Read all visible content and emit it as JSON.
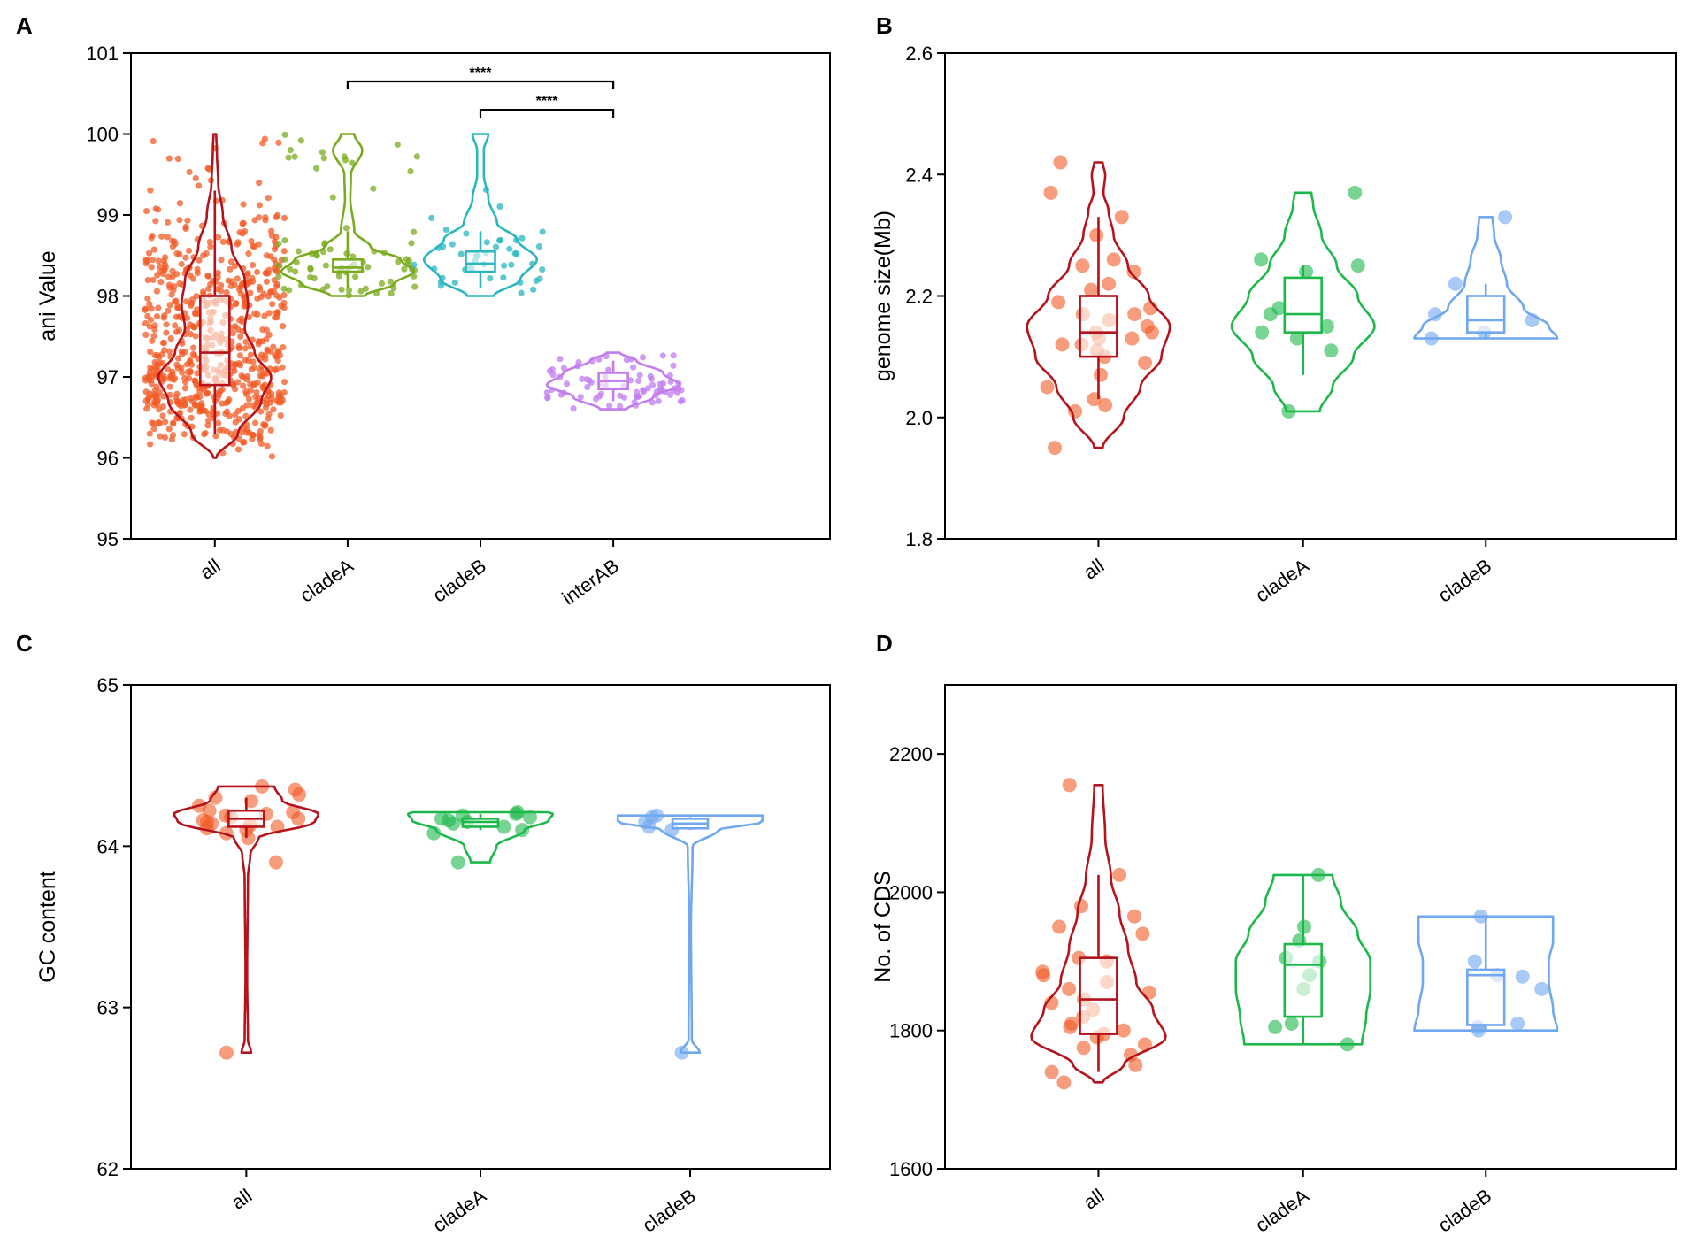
{
  "chart_data": [
    {
      "panel": "A",
      "type": "violin",
      "ylabel": "ani Value",
      "xlabel": "",
      "ylim": [
        95,
        101
      ],
      "yticks": [
        95,
        96,
        97,
        98,
        99,
        100,
        101
      ],
      "categories": [
        "all",
        "cladeA",
        "cladeB",
        "interAB"
      ],
      "colors": [
        "#f15a24",
        "#7aab1e",
        "#2ab7c0",
        "#c27cf0"
      ],
      "line_colors": [
        "#b5121b",
        "#7aab1e",
        "#2ab7c0",
        "#c27cf0"
      ],
      "points_per_group": [
        700,
        80,
        45,
        80
      ],
      "groups": [
        {
          "name": "all",
          "min": 96.0,
          "q1": 96.9,
          "median": 97.3,
          "q3": 98.0,
          "max": 100.0,
          "whisker_low": 96.3,
          "whisker_high": 99.3,
          "density": [
            [
              96.0,
              0.02
            ],
            [
              96.3,
              0.35
            ],
            [
              96.7,
              0.7
            ],
            [
              97.0,
              0.85
            ],
            [
              97.3,
              0.6
            ],
            [
              97.6,
              0.45
            ],
            [
              97.9,
              0.5
            ],
            [
              98.2,
              0.45
            ],
            [
              98.6,
              0.25
            ],
            [
              99.0,
              0.12
            ],
            [
              99.4,
              0.05
            ],
            [
              99.8,
              0.03
            ],
            [
              100.0,
              0.02
            ]
          ]
        },
        {
          "name": "cladeA",
          "min": 98.0,
          "q1": 98.3,
          "median": 98.35,
          "q3": 98.45,
          "max": 100.0,
          "whisker_low": 98.1,
          "whisker_high": 98.8,
          "density": [
            [
              98.0,
              0.25
            ],
            [
              98.15,
              0.7
            ],
            [
              98.3,
              1.0
            ],
            [
              98.45,
              0.8
            ],
            [
              98.6,
              0.35
            ],
            [
              98.8,
              0.1
            ],
            [
              99.2,
              0.04
            ],
            [
              99.5,
              0.05
            ],
            [
              99.8,
              0.22
            ],
            [
              100.0,
              0.1
            ]
          ]
        },
        {
          "name": "cladeB",
          "min": 98.0,
          "q1": 98.3,
          "median": 98.4,
          "q3": 98.55,
          "max": 100.0,
          "whisker_low": 98.1,
          "whisker_high": 98.8,
          "density": [
            [
              98.0,
              0.2
            ],
            [
              98.2,
              0.6
            ],
            [
              98.45,
              0.85
            ],
            [
              98.7,
              0.55
            ],
            [
              98.9,
              0.25
            ],
            [
              99.2,
              0.12
            ],
            [
              99.5,
              0.05
            ],
            [
              99.8,
              0.05
            ],
            [
              100.0,
              0.12
            ]
          ]
        },
        {
          "name": "interAB",
          "min": 96.6,
          "q1": 96.85,
          "median": 96.95,
          "q3": 97.05,
          "max": 97.3,
          "whisker_low": 96.7,
          "whisker_high": 97.2,
          "density": [
            [
              96.6,
              0.2
            ],
            [
              96.75,
              0.6
            ],
            [
              96.9,
              1.0
            ],
            [
              97.05,
              0.75
            ],
            [
              97.2,
              0.35
            ],
            [
              97.3,
              0.1
            ]
          ]
        }
      ],
      "significance": [
        {
          "from": "cladeA",
          "to": "interAB",
          "y": 100.65,
          "label": "****"
        },
        {
          "from": "cladeB",
          "to": "interAB",
          "y": 100.3,
          "label": "****"
        }
      ]
    },
    {
      "panel": "B",
      "type": "violin",
      "ylabel": "genome size(Mb)",
      "xlabel": "",
      "ylim": [
        1.8,
        2.6
      ],
      "yticks": [
        1.8,
        2.0,
        2.2,
        2.4,
        2.6
      ],
      "categories": [
        "all",
        "cladeA",
        "cladeB"
      ],
      "colors": [
        "#f15a24",
        "#1db84a",
        "#6fa7f0"
      ],
      "line_colors": [
        "#b5121b",
        "#1db84a",
        "#6fa7f0"
      ],
      "groups": [
        {
          "name": "all",
          "min": 1.95,
          "q1": 2.1,
          "median": 2.14,
          "q3": 2.2,
          "max": 2.42,
          "whisker_low": 2.03,
          "whisker_high": 2.33,
          "points": [
            2.42,
            2.37,
            2.33,
            2.3,
            2.26,
            2.25,
            2.24,
            2.22,
            2.21,
            2.19,
            2.18,
            2.17,
            2.17,
            2.16,
            2.15,
            2.14,
            2.14,
            2.13,
            2.13,
            2.12,
            2.12,
            2.11,
            2.1,
            2.09,
            2.07,
            2.05,
            2.03,
            2.02,
            2.01,
            1.95
          ],
          "density": [
            [
              1.95,
              0.05
            ],
            [
              2.0,
              0.3
            ],
            [
              2.05,
              0.5
            ],
            [
              2.1,
              0.75
            ],
            [
              2.15,
              0.85
            ],
            [
              2.2,
              0.6
            ],
            [
              2.25,
              0.35
            ],
            [
              2.3,
              0.18
            ],
            [
              2.34,
              0.12
            ],
            [
              2.37,
              0.06
            ],
            [
              2.4,
              0.08
            ],
            [
              2.42,
              0.05
            ]
          ]
        },
        {
          "name": "cladeA",
          "min": 2.01,
          "q1": 2.14,
          "median": 2.17,
          "q3": 2.23,
          "max": 2.37,
          "whisker_low": 2.07,
          "whisker_high": 2.25,
          "points": [
            2.37,
            2.26,
            2.25,
            2.24,
            2.18,
            2.17,
            2.15,
            2.14,
            2.13,
            2.11,
            2.01
          ],
          "density": [
            [
              2.01,
              0.2
            ],
            [
              2.05,
              0.35
            ],
            [
              2.1,
              0.6
            ],
            [
              2.15,
              0.85
            ],
            [
              2.2,
              0.65
            ],
            [
              2.25,
              0.4
            ],
            [
              2.3,
              0.22
            ],
            [
              2.35,
              0.12
            ],
            [
              2.37,
              0.1
            ]
          ]
        },
        {
          "name": "cladeB",
          "min": 2.13,
          "q1": 2.14,
          "median": 2.16,
          "q3": 2.2,
          "max": 2.33,
          "whisker_low": 2.13,
          "whisker_high": 2.22,
          "points": [
            2.33,
            2.22,
            2.17,
            2.16,
            2.14,
            2.13
          ],
          "density": [
            [
              2.13,
              0.85
            ],
            [
              2.15,
              0.75
            ],
            [
              2.18,
              0.45
            ],
            [
              2.22,
              0.25
            ],
            [
              2.26,
              0.18
            ],
            [
              2.3,
              0.1
            ],
            [
              2.33,
              0.08
            ]
          ]
        }
      ]
    },
    {
      "panel": "C",
      "type": "violin",
      "ylabel": "GC content",
      "xlabel": "",
      "ylim": [
        62,
        65
      ],
      "yticks": [
        62,
        63,
        64,
        65
      ],
      "categories": [
        "all",
        "cladeA",
        "cladeB"
      ],
      "colors": [
        "#f15a24",
        "#1db84a",
        "#6fa7f0"
      ],
      "line_colors": [
        "#b5121b",
        "#1db84a",
        "#6fa7f0"
      ],
      "groups": [
        {
          "name": "all",
          "min": 62.72,
          "q1": 64.12,
          "median": 64.17,
          "q3": 64.22,
          "max": 64.37,
          "whisker_low": 64.05,
          "whisker_high": 64.3,
          "points": [
            64.37,
            64.35,
            64.32,
            64.3,
            64.28,
            64.25,
            64.22,
            64.21,
            64.2,
            64.19,
            64.18,
            64.17,
            64.16,
            64.15,
            64.14,
            64.13,
            64.12,
            64.11,
            64.1,
            64.08,
            64.05,
            63.9,
            62.72
          ],
          "density": [
            [
              62.72,
              0.06
            ],
            [
              62.8,
              0.02
            ],
            [
              63.2,
              0.01
            ],
            [
              63.8,
              0.02
            ],
            [
              63.95,
              0.05
            ],
            [
              64.05,
              0.15
            ],
            [
              64.15,
              0.85
            ],
            [
              64.2,
              0.9
            ],
            [
              64.28,
              0.45
            ],
            [
              64.37,
              0.35
            ]
          ]
        },
        {
          "name": "cladeA",
          "min": 63.9,
          "q1": 64.12,
          "median": 64.15,
          "q3": 64.17,
          "max": 64.21,
          "whisker_low": 64.1,
          "whisker_high": 64.2,
          "points": [
            64.21,
            64.2,
            64.19,
            64.18,
            64.17,
            64.16,
            64.15,
            64.14,
            64.12,
            64.1,
            64.08,
            63.9
          ],
          "density": [
            [
              63.9,
              0.12
            ],
            [
              64.0,
              0.2
            ],
            [
              64.1,
              0.55
            ],
            [
              64.16,
              0.85
            ],
            [
              64.2,
              0.9
            ],
            [
              64.21,
              0.85
            ]
          ]
        },
        {
          "name": "cladeB",
          "min": 62.72,
          "q1": 64.11,
          "median": 64.14,
          "q3": 64.17,
          "max": 64.19,
          "whisker_low": 64.1,
          "whisker_high": 64.18,
          "points": [
            64.19,
            64.18,
            64.15,
            64.12,
            64.1,
            62.72
          ],
          "density": [
            [
              62.72,
              0.12
            ],
            [
              62.8,
              0.02
            ],
            [
              63.5,
              0.01
            ],
            [
              64.0,
              0.03
            ],
            [
              64.1,
              0.35
            ],
            [
              64.15,
              0.9
            ],
            [
              64.19,
              0.9
            ]
          ]
        }
      ]
    },
    {
      "panel": "D",
      "type": "violin",
      "ylabel": "No. of CDS",
      "xlabel": "",
      "ylim": [
        1600,
        2300
      ],
      "yticks": [
        1600,
        1800,
        2000,
        2200
      ],
      "categories": [
        "all",
        "cladeA",
        "cladeB"
      ],
      "colors": [
        "#f15a24",
        "#1db84a",
        "#6fa7f0"
      ],
      "line_colors": [
        "#b5121b",
        "#1db84a",
        "#6fa7f0"
      ],
      "groups": [
        {
          "name": "all",
          "min": 1725,
          "q1": 1795,
          "median": 1845,
          "q3": 1905,
          "max": 2155,
          "whisker_low": 1740,
          "whisker_high": 2025,
          "points": [
            2155,
            2025,
            1980,
            1965,
            1950,
            1940,
            1905,
            1900,
            1885,
            1880,
            1870,
            1860,
            1855,
            1845,
            1840,
            1830,
            1820,
            1810,
            1805,
            1800,
            1795,
            1790,
            1780,
            1775,
            1765,
            1750,
            1740,
            1725
          ],
          "density": [
            [
              1725,
              0.05
            ],
            [
              1750,
              0.3
            ],
            [
              1790,
              0.8
            ],
            [
              1830,
              0.65
            ],
            [
              1870,
              0.45
            ],
            [
              1920,
              0.35
            ],
            [
              1970,
              0.25
            ],
            [
              2020,
              0.15
            ],
            [
              2080,
              0.08
            ],
            [
              2155,
              0.05
            ]
          ]
        },
        {
          "name": "cladeA",
          "min": 1780,
          "q1": 1820,
          "median": 1895,
          "q3": 1925,
          "max": 2025,
          "whisker_low": 1780,
          "whisker_high": 2025,
          "points": [
            2025,
            1950,
            1930,
            1905,
            1900,
            1880,
            1860,
            1810,
            1805,
            1780
          ],
          "density": [
            [
              1780,
              0.7
            ],
            [
              1820,
              0.75
            ],
            [
              1860,
              0.8
            ],
            [
              1900,
              0.8
            ],
            [
              1940,
              0.65
            ],
            [
              1985,
              0.45
            ],
            [
              2025,
              0.35
            ]
          ]
        },
        {
          "name": "cladeB",
          "min": 1800,
          "q1": 1808,
          "median": 1880,
          "q3": 1888,
          "max": 1965,
          "whisker_low": 1800,
          "whisker_high": 1965,
          "points": [
            1965,
            1900,
            1880,
            1878,
            1860,
            1810,
            1805,
            1800
          ],
          "density": [
            [
              1800,
              0.85
            ],
            [
              1830,
              0.8
            ],
            [
              1870,
              0.75
            ],
            [
              1900,
              0.75
            ],
            [
              1930,
              0.8
            ],
            [
              1965,
              0.8
            ]
          ]
        }
      ]
    }
  ]
}
